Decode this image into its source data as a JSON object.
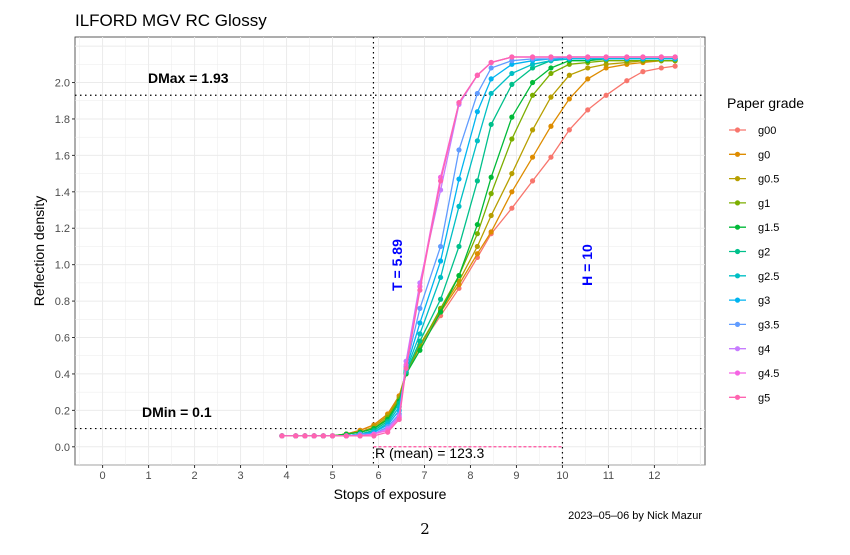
{
  "chart_data": {
    "type": "line",
    "title": "ILFORD MGV RC Glossy",
    "xlabel": "Stops of exposure",
    "ylabel": "Reflection density",
    "xlim": [
      -0.6,
      13.1
    ],
    "ylim": [
      -0.1,
      2.25
    ],
    "x_ticks": [
      0,
      1,
      2,
      3,
      4,
      5,
      6,
      7,
      8,
      9,
      10,
      11,
      12
    ],
    "y_ticks": [
      "0.0",
      "0.2",
      "0.4",
      "0.6",
      "0.8",
      "1.0",
      "1.2",
      "1.4",
      "1.6",
      "1.8",
      "2.0"
    ],
    "grid": true,
    "legend": {
      "title": "Paper grade",
      "position": "right"
    },
    "x": [
      3.9,
      4.2,
      4.4,
      4.6,
      4.8,
      5.0,
      5.3,
      5.6,
      5.9,
      6.2,
      6.45,
      6.6,
      6.9,
      7.35,
      7.75,
      8.15,
      8.45,
      8.9,
      9.35,
      9.75,
      10.15,
      10.55,
      10.95,
      11.4,
      11.75,
      12.15,
      12.45
    ],
    "series": [
      {
        "name": "g00",
        "color": "#F8766D",
        "values": [
          0.06,
          0.06,
          0.06,
          0.06,
          0.06,
          0.06,
          0.07,
          0.09,
          0.12,
          0.18,
          0.28,
          0.4,
          0.55,
          0.72,
          0.87,
          1.04,
          1.17,
          1.31,
          1.46,
          1.59,
          1.74,
          1.85,
          1.93,
          2.01,
          2.06,
          2.08,
          2.09
        ]
      },
      {
        "name": "g0",
        "color": "#DE8C00",
        "values": [
          0.06,
          0.06,
          0.06,
          0.06,
          0.06,
          0.06,
          0.07,
          0.09,
          0.12,
          0.18,
          0.28,
          0.41,
          0.56,
          0.74,
          0.89,
          1.06,
          1.18,
          1.4,
          1.59,
          1.76,
          1.91,
          2.02,
          2.08,
          2.1,
          2.11,
          2.12,
          2.12
        ]
      },
      {
        "name": "g0.5",
        "color": "#B79F00",
        "values": [
          0.06,
          0.06,
          0.06,
          0.06,
          0.06,
          0.06,
          0.07,
          0.08,
          0.11,
          0.17,
          0.27,
          0.41,
          0.56,
          0.75,
          0.91,
          1.1,
          1.27,
          1.5,
          1.74,
          1.92,
          2.04,
          2.08,
          2.1,
          2.11,
          2.12,
          2.12,
          2.12
        ]
      },
      {
        "name": "g1",
        "color": "#7CAE00",
        "values": [
          0.06,
          0.06,
          0.06,
          0.06,
          0.06,
          0.06,
          0.07,
          0.08,
          0.1,
          0.16,
          0.26,
          0.41,
          0.55,
          0.76,
          0.94,
          1.17,
          1.39,
          1.69,
          1.93,
          2.05,
          2.1,
          2.11,
          2.12,
          2.12,
          2.12,
          2.12,
          2.12
        ]
      },
      {
        "name": "g1.5",
        "color": "#00BA38",
        "values": [
          0.06,
          0.06,
          0.06,
          0.06,
          0.06,
          0.06,
          0.07,
          0.08,
          0.1,
          0.15,
          0.25,
          0.4,
          0.53,
          0.74,
          0.94,
          1.22,
          1.48,
          1.81,
          2.0,
          2.08,
          2.12,
          2.12,
          2.13,
          2.13,
          2.13,
          2.13,
          2.13
        ]
      },
      {
        "name": "g2",
        "color": "#00C08B",
        "values": [
          0.06,
          0.06,
          0.06,
          0.06,
          0.06,
          0.06,
          0.06,
          0.07,
          0.09,
          0.14,
          0.24,
          0.41,
          0.58,
          0.81,
          1.1,
          1.46,
          1.77,
          1.99,
          2.08,
          2.12,
          2.13,
          2.13,
          2.13,
          2.13,
          2.13,
          2.13,
          2.13
        ]
      },
      {
        "name": "g2.5",
        "color": "#00BFC4",
        "values": [
          0.06,
          0.06,
          0.06,
          0.06,
          0.06,
          0.06,
          0.06,
          0.07,
          0.08,
          0.13,
          0.22,
          0.42,
          0.62,
          0.93,
          1.32,
          1.68,
          1.94,
          2.05,
          2.1,
          2.12,
          2.13,
          2.13,
          2.13,
          2.13,
          2.13,
          2.13,
          2.13
        ]
      },
      {
        "name": "g3",
        "color": "#00B4F0",
        "values": [
          0.06,
          0.06,
          0.06,
          0.06,
          0.06,
          0.06,
          0.06,
          0.07,
          0.08,
          0.12,
          0.2,
          0.43,
          0.68,
          1.02,
          1.47,
          1.84,
          2.02,
          2.1,
          2.12,
          2.13,
          2.13,
          2.13,
          2.13,
          2.13,
          2.13,
          2.13,
          2.13
        ]
      },
      {
        "name": "g3.5",
        "color": "#619CFF",
        "values": [
          0.06,
          0.06,
          0.06,
          0.06,
          0.06,
          0.06,
          0.06,
          0.07,
          0.07,
          0.11,
          0.18,
          0.44,
          0.76,
          1.1,
          1.63,
          1.94,
          2.08,
          2.12,
          2.13,
          2.13,
          2.14,
          2.14,
          2.14,
          2.14,
          2.14,
          2.14,
          2.14
        ]
      },
      {
        "name": "g4",
        "color": "#C77CFF",
        "values": [
          0.06,
          0.06,
          0.06,
          0.06,
          0.06,
          0.06,
          0.06,
          0.06,
          0.07,
          0.1,
          0.17,
          0.47,
          0.9,
          1.41,
          1.88,
          2.04,
          2.11,
          2.14,
          2.14,
          2.14,
          2.14,
          2.14,
          2.14,
          2.14,
          2.14,
          2.14,
          2.14
        ]
      },
      {
        "name": "g4.5",
        "color": "#F564E3",
        "values": [
          0.06,
          0.06,
          0.06,
          0.06,
          0.06,
          0.06,
          0.06,
          0.06,
          0.07,
          0.09,
          0.16,
          0.45,
          0.88,
          1.48,
          1.89,
          2.04,
          2.11,
          2.14,
          2.14,
          2.14,
          2.14,
          2.14,
          2.14,
          2.14,
          2.14,
          2.14,
          2.14
        ]
      },
      {
        "name": "g5",
        "color": "#FF64B0",
        "values": [
          0.06,
          0.06,
          0.06,
          0.06,
          0.06,
          0.06,
          0.06,
          0.06,
          0.06,
          0.08,
          0.15,
          0.43,
          0.86,
          1.46,
          1.89,
          2.04,
          2.11,
          2.14,
          2.14,
          2.14,
          2.14,
          2.14,
          2.14,
          2.14,
          2.14,
          2.14,
          2.14
        ]
      }
    ],
    "annotations": {
      "dmax_label": "DMax =  1.93",
      "dmax": 1.93,
      "dmin_label": "DMin =  0.1",
      "dmin": 0.1,
      "t_label": "T = 5.89",
      "t": 5.89,
      "h_label": "H = 10",
      "h": 10,
      "r_label": "R (mean) = 123.3"
    },
    "caption": "2023–05–06 by Nick Mazur"
  },
  "page_number": "2"
}
